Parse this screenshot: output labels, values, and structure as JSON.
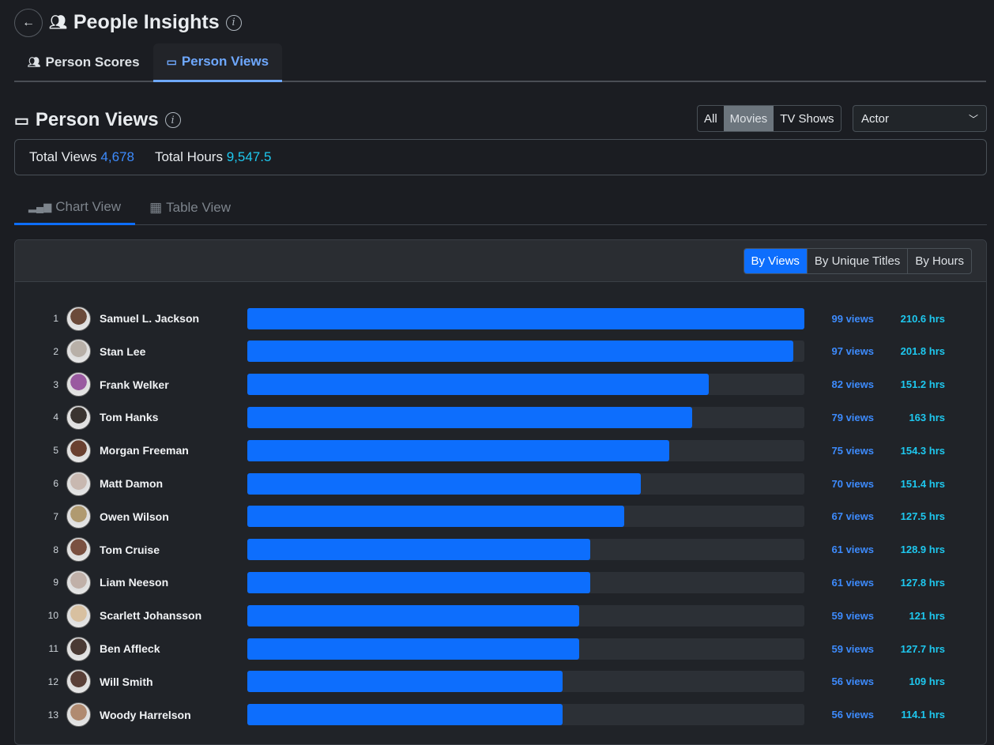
{
  "header": {
    "title": "People Insights",
    "back": "←"
  },
  "tabs": [
    {
      "label": "Person Scores"
    },
    {
      "label": "Person Views"
    }
  ],
  "section": {
    "title": "Person Views"
  },
  "filter": {
    "options": [
      "All",
      "Movies",
      "TV Shows"
    ],
    "selected": "Movies"
  },
  "role_select": {
    "value": "Actor"
  },
  "totals": {
    "views_label": "Total Views",
    "views": "4,678",
    "hours_label": "Total Hours",
    "hours": "9,547.5"
  },
  "view_tabs": [
    {
      "label": "Chart View"
    },
    {
      "label": "Table View"
    }
  ],
  "sort": {
    "options": [
      "By Views",
      "By Unique Titles",
      "By Hours"
    ],
    "selected": "By Views"
  },
  "colors": {
    "accent": "#0d6efd",
    "hours": "#1ec8ef"
  },
  "chart_data": {
    "type": "bar",
    "max": 99,
    "rows": [
      {
        "rank": "1",
        "name": "Samuel L. Jackson",
        "views": 99,
        "views_label": "99 views",
        "hours": "210.6 hrs",
        "avatar": "#6b4a3a"
      },
      {
        "rank": "2",
        "name": "Stan Lee",
        "views": 97,
        "views_label": "97 views",
        "hours": "201.8 hrs",
        "avatar": "#b8b0a8"
      },
      {
        "rank": "3",
        "name": "Frank Welker",
        "views": 82,
        "views_label": "82 views",
        "hours": "151.2 hrs",
        "avatar": "#9a5aa0"
      },
      {
        "rank": "4",
        "name": "Tom Hanks",
        "views": 79,
        "views_label": "79 views",
        "hours": "163 hrs",
        "avatar": "#3a3430"
      },
      {
        "rank": "5",
        "name": "Morgan Freeman",
        "views": 75,
        "views_label": "75 views",
        "hours": "154.3 hrs",
        "avatar": "#6a4030"
      },
      {
        "rank": "6",
        "name": "Matt Damon",
        "views": 70,
        "views_label": "70 views",
        "hours": "151.4 hrs",
        "avatar": "#c8b8b0"
      },
      {
        "rank": "7",
        "name": "Owen Wilson",
        "views": 67,
        "views_label": "67 views",
        "hours": "127.5 hrs",
        "avatar": "#b09a70"
      },
      {
        "rank": "8",
        "name": "Tom Cruise",
        "views": 61,
        "views_label": "61 views",
        "hours": "128.9 hrs",
        "avatar": "#7a5040"
      },
      {
        "rank": "9",
        "name": "Liam Neeson",
        "views": 61,
        "views_label": "61 views",
        "hours": "127.8 hrs",
        "avatar": "#c0b0a8"
      },
      {
        "rank": "10",
        "name": "Scarlett Johansson",
        "views": 59,
        "views_label": "59 views",
        "hours": "121 hrs",
        "avatar": "#d8c0a0"
      },
      {
        "rank": "11",
        "name": "Ben Affleck",
        "views": 59,
        "views_label": "59 views",
        "hours": "127.7 hrs",
        "avatar": "#4a3a34"
      },
      {
        "rank": "12",
        "name": "Will Smith",
        "views": 56,
        "views_label": "56 views",
        "hours": "109 hrs",
        "avatar": "#5a4038"
      },
      {
        "rank": "13",
        "name": "Woody Harrelson",
        "views": 56,
        "views_label": "56 views",
        "hours": "114.1 hrs",
        "avatar": "#b08a70"
      }
    ]
  }
}
